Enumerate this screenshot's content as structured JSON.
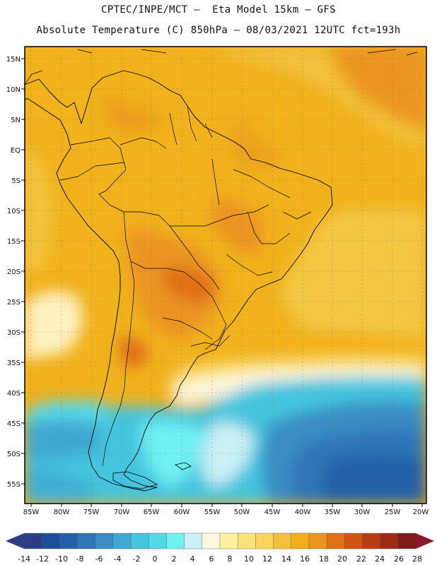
{
  "title_line1": "CPTEC/INPE/MCT –  Eta Model 15km – GFS",
  "title_line2": "Absolute Temperature (C) 850hPa – 08/03/2021 12UTC fct=193h",
  "lat_labels": [
    "15N",
    "10N",
    "5N",
    "EQ",
    "5S",
    "10S",
    "15S",
    "20S",
    "25S",
    "30S",
    "35S",
    "40S",
    "45S",
    "50S",
    "55S"
  ],
  "lon_labels": [
    "85W",
    "80W",
    "75W",
    "70W",
    "65W",
    "60W",
    "55W",
    "50W",
    "45W",
    "40W",
    "35W",
    "30W",
    "25W",
    "20W"
  ],
  "colorbar": {
    "labels": [
      "-14",
      "-12",
      "-10",
      "-8",
      "-6",
      "-4",
      "-2",
      "0",
      "2",
      "4",
      "6",
      "8",
      "10",
      "12",
      "14",
      "16",
      "18",
      "20",
      "22",
      "24",
      "26",
      "28"
    ],
    "colors": [
      "#2c3f86",
      "#1d4f9a",
      "#2460a8",
      "#2f74b6",
      "#3a8dc4",
      "#3ea7d2",
      "#44c4df",
      "#54d8e8",
      "#6ff0f3",
      "#c9f1f6",
      "#fdf6e0",
      "#fdf1a0",
      "#fbe27a",
      "#f8d45a",
      "#f2c03d",
      "#efae1c",
      "#eb9420",
      "#e07018",
      "#d35410",
      "#b93d10",
      "#9e2a14",
      "#7c1c14"
    ],
    "under_color": "#2a3f84",
    "over_color": "#8a1a2a"
  }
}
